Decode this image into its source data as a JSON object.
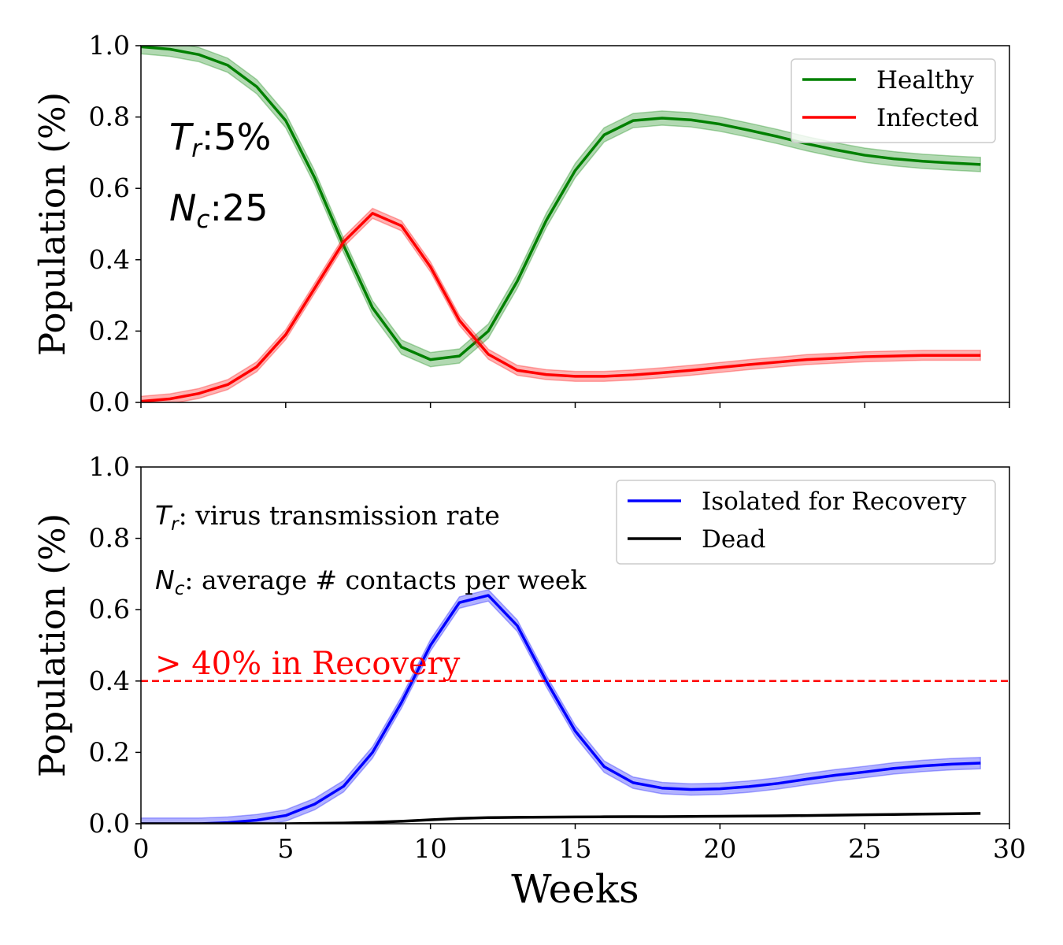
{
  "chart_data": [
    {
      "type": "line",
      "ylabel": "Population (%)",
      "xlabel": "",
      "xlim": [
        0,
        30
      ],
      "ylim": [
        0,
        1.0
      ],
      "x_ticks": [
        "0",
        "5",
        "10",
        "15",
        "20",
        "25",
        "30"
      ],
      "y_ticks": [
        "0.0",
        "0.2",
        "0.4",
        "0.6",
        "0.8",
        "1.0"
      ],
      "x_tick_labels_visible": false,
      "legend_position": "upper right",
      "annotations": {
        "tr_symbol": "T",
        "tr_sub": "r",
        "tr_value": ":5%",
        "nc_symbol": "N",
        "nc_sub": "c",
        "nc_value": ":25"
      },
      "x": [
        0,
        1,
        2,
        3,
        4,
        5,
        6,
        7,
        8,
        9,
        10,
        11,
        12,
        13,
        14,
        15,
        16,
        17,
        18,
        19,
        20,
        21,
        22,
        23,
        24,
        25,
        26,
        27,
        28,
        29
      ],
      "series": [
        {
          "name": "Healthy",
          "color": "#008000",
          "values": [
            0.997,
            0.99,
            0.975,
            0.945,
            0.885,
            0.79,
            0.63,
            0.44,
            0.265,
            0.155,
            0.12,
            0.13,
            0.2,
            0.34,
            0.51,
            0.65,
            0.75,
            0.79,
            0.797,
            0.792,
            0.78,
            0.763,
            0.745,
            0.725,
            0.708,
            0.693,
            0.683,
            0.676,
            0.671,
            0.667
          ],
          "band": 0.02
        },
        {
          "name": "Infected",
          "color": "#ff0000",
          "values": [
            0.003,
            0.01,
            0.025,
            0.05,
            0.1,
            0.19,
            0.32,
            0.45,
            0.53,
            0.495,
            0.38,
            0.23,
            0.135,
            0.09,
            0.078,
            0.073,
            0.073,
            0.077,
            0.083,
            0.09,
            0.098,
            0.106,
            0.113,
            0.12,
            0.124,
            0.128,
            0.13,
            0.132,
            0.132,
            0.132
          ],
          "band": 0.014
        }
      ]
    },
    {
      "type": "line",
      "ylabel": "Population (%)",
      "xlabel": "Weeks",
      "xlim": [
        0,
        30
      ],
      "ylim": [
        0,
        1.0
      ],
      "x_ticks": [
        "0",
        "5",
        "10",
        "15",
        "20",
        "25",
        "30"
      ],
      "y_ticks": [
        "0.0",
        "0.2",
        "0.4",
        "0.6",
        "0.8",
        "1.0"
      ],
      "legend_position": "upper right",
      "annotations": {
        "tr_symbol": "T",
        "tr_sub": "r",
        "tr_text": ": virus transmission rate",
        "nc_symbol": "N",
        "nc_sub": "c",
        "nc_text": ": average # contacts per week",
        "threshold_label": "> 40% in Recovery",
        "threshold_value": 0.4,
        "threshold_color": "#ff0000"
      },
      "x": [
        0,
        1,
        2,
        3,
        4,
        5,
        6,
        7,
        8,
        9,
        10,
        11,
        12,
        13,
        14,
        15,
        16,
        17,
        18,
        19,
        20,
        21,
        22,
        23,
        24,
        25,
        26,
        27,
        28,
        29
      ],
      "series": [
        {
          "name": "Isolated for Recovery",
          "color": "#0000ff",
          "values": [
            0.0,
            0.0,
            0.0,
            0.003,
            0.01,
            0.023,
            0.055,
            0.105,
            0.2,
            0.34,
            0.5,
            0.62,
            0.64,
            0.555,
            0.4,
            0.26,
            0.16,
            0.115,
            0.1,
            0.096,
            0.098,
            0.104,
            0.113,
            0.125,
            0.136,
            0.145,
            0.155,
            0.162,
            0.167,
            0.17
          ],
          "band": 0.016
        },
        {
          "name": "Dead",
          "color": "#000000",
          "values": [
            0.0,
            0.0,
            0.0,
            0.0,
            0.0,
            0.0,
            0.001,
            0.002,
            0.004,
            0.007,
            0.011,
            0.015,
            0.017,
            0.018,
            0.0185,
            0.019,
            0.0195,
            0.0198,
            0.02,
            0.0205,
            0.021,
            0.0215,
            0.022,
            0.023,
            0.024,
            0.025,
            0.026,
            0.027,
            0.028,
            0.029
          ],
          "band": 0
        }
      ]
    }
  ]
}
